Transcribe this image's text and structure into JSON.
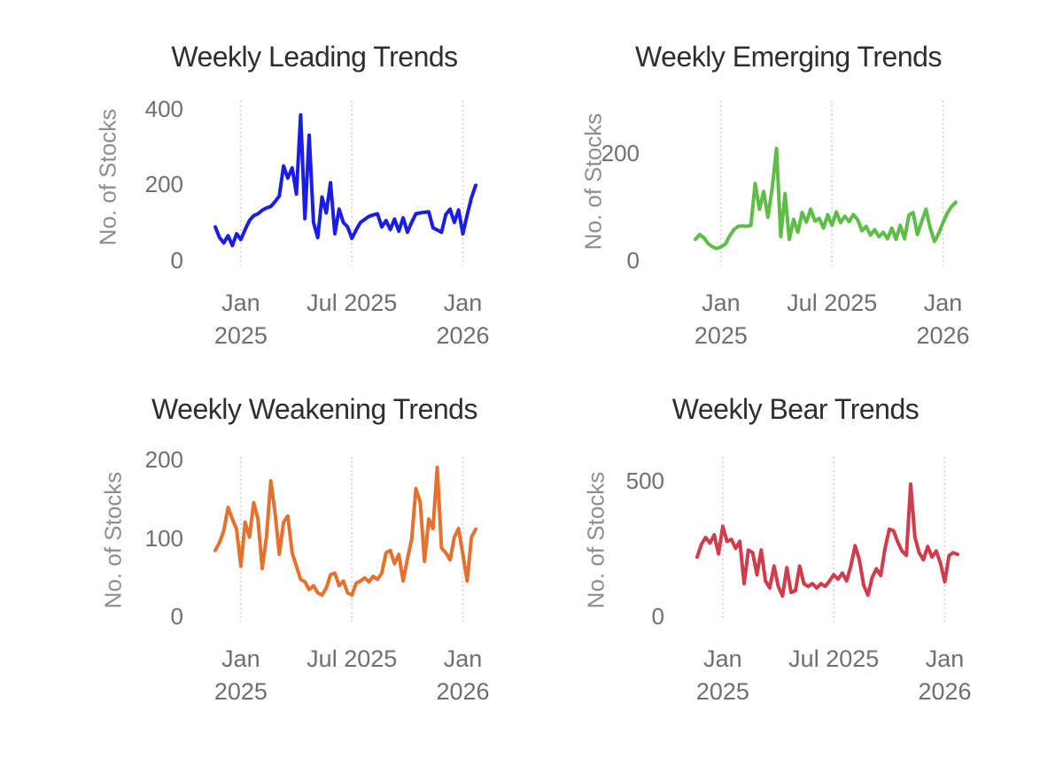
{
  "page": {
    "background_color": "#ffffff",
    "layout_hint": "2x2 grid of weekly trend line charts",
    "title_color": "#2e2e2e",
    "tick_label_color": "#6f6f6f",
    "axis_title_color": "#8e8e8e",
    "gridline_color": "#c9c9c9",
    "gridline_style": "dotted-vertical"
  },
  "chart_data": [
    {
      "type": "line",
      "title": "Weekly Leading Trends",
      "ylabel": "No. of Stocks",
      "color": "#1c1ce8",
      "line_width": 4,
      "grid": "vertical-dotted",
      "legend": "none",
      "y_ticks": [
        0,
        200,
        400
      ],
      "ylim": [
        0,
        430
      ],
      "n_weeks": 62,
      "x_tick_week_indices": [
        6,
        32,
        58
      ],
      "x_tick_labels": [
        "Jan 2025",
        "Jul 2025",
        "Jan 2026"
      ],
      "x_tick_label_lines": [
        [
          "Jan",
          "2025"
        ],
        [
          "Jul 2025",
          ""
        ],
        [
          "Jan",
          "2026"
        ]
      ],
      "values": [
        88,
        60,
        46,
        65,
        39,
        70,
        55,
        81,
        105,
        118,
        123,
        132,
        138,
        142,
        155,
        170,
        249,
        217,
        244,
        175,
        384,
        110,
        330,
        100,
        60,
        167,
        125,
        205,
        70,
        135,
        100,
        88,
        58,
        80,
        100,
        108,
        116,
        120,
        123,
        88,
        105,
        81,
        109,
        77,
        112,
        74,
        100,
        123,
        125,
        127,
        128,
        86,
        80,
        74,
        121,
        135,
        100,
        133,
        70,
        120,
        165,
        198
      ]
    },
    {
      "type": "line",
      "title": "Weekly Emerging Trends",
      "ylabel": "No. of Stocks",
      "color": "#5cbe44",
      "line_width": 4,
      "grid": "vertical-dotted",
      "legend": "none",
      "y_ticks": [
        0,
        200
      ],
      "ylim": [
        0,
        303
      ],
      "n_weeks": 62,
      "x_tick_week_indices": [
        6,
        32,
        58
      ],
      "x_tick_labels": [
        "Jan 2025",
        "Jul 2025",
        "Jan 2026"
      ],
      "x_tick_label_lines": [
        [
          "Jan",
          "2025"
        ],
        [
          "Jul 2025",
          ""
        ],
        [
          "Jan",
          "2026"
        ]
      ],
      "values": [
        39,
        48,
        42,
        31,
        25,
        22,
        25,
        30,
        45,
        57,
        63,
        64,
        63,
        65,
        143,
        95,
        128,
        80,
        135,
        208,
        44,
        124,
        39,
        76,
        52,
        89,
        71,
        95,
        73,
        78,
        60,
        85,
        65,
        90,
        70,
        82,
        72,
        85,
        76,
        55,
        63,
        47,
        57,
        44,
        52,
        40,
        60,
        39,
        65,
        40,
        84,
        89,
        48,
        72,
        95,
        60,
        35,
        50,
        70,
        88,
        100,
        108
      ]
    },
    {
      "type": "line",
      "title": "Weekly Weakening Trends",
      "ylabel": "No. of Stocks",
      "color": "#e6702d",
      "line_width": 4,
      "grid": "vertical-dotted",
      "legend": "none",
      "y_ticks": [
        0,
        100,
        200
      ],
      "ylim": [
        0,
        208
      ],
      "n_weeks": 62,
      "x_tick_week_indices": [
        6,
        32,
        58
      ],
      "x_tick_labels": [
        "Jan 2025",
        "Jul 2025",
        "Jan 2026"
      ],
      "x_tick_label_lines": [
        [
          "Jan",
          "2025"
        ],
        [
          "Jul 2025",
          ""
        ],
        [
          "Jan",
          "2026"
        ]
      ],
      "values": [
        84,
        94,
        109,
        139,
        124,
        111,
        64,
        120,
        101,
        145,
        124,
        61,
        101,
        173,
        132,
        79,
        120,
        128,
        81,
        64,
        47,
        44,
        34,
        39,
        30,
        27,
        36,
        53,
        55,
        39,
        45,
        30,
        27,
        42,
        45,
        49,
        44,
        51,
        47,
        55,
        81,
        84,
        67,
        79,
        45,
        73,
        98,
        163,
        146,
        70,
        124,
        112,
        190,
        87,
        81,
        72,
        101,
        112,
        79,
        45,
        101,
        111
      ]
    },
    {
      "type": "line",
      "title": "Weekly Bear Trends",
      "ylabel": "No. of Stocks",
      "color": "#d23b4c",
      "line_width": 4,
      "grid": "vertical-dotted",
      "legend": "none",
      "y_ticks": [
        0,
        500
      ],
      "ylim": [
        0,
        600
      ],
      "n_weeks": 62,
      "x_tick_week_indices": [
        6,
        32,
        58
      ],
      "x_tick_labels": [
        "Jan 2025",
        "Jul 2025",
        "Jan 2026"
      ],
      "x_tick_label_lines": [
        [
          "Jan",
          "2025"
        ],
        [
          "Jul 2025",
          ""
        ],
        [
          "Jan",
          "2026"
        ]
      ],
      "values": [
        218,
        265,
        290,
        270,
        300,
        230,
        331,
        276,
        283,
        250,
        276,
        120,
        244,
        234,
        153,
        244,
        130,
        104,
        185,
        110,
        75,
        179,
        88,
        94,
        185,
        120,
        110,
        120,
        104,
        120,
        110,
        130,
        153,
        136,
        159,
        130,
        185,
        260,
        208,
        114,
        78,
        143,
        175,
        150,
        250,
        321,
        315,
        273,
        240,
        224,
        487,
        292,
        234,
        208,
        257,
        218,
        240,
        195,
        127,
        224,
        234,
        228
      ]
    }
  ]
}
